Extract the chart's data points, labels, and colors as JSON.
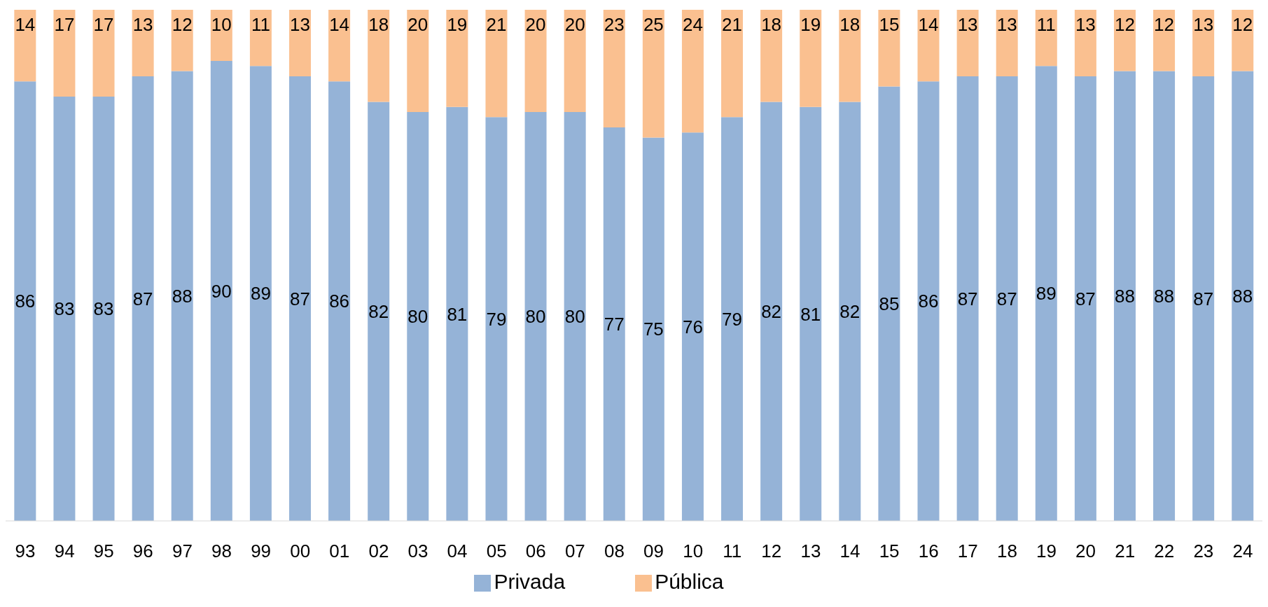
{
  "chart_data": {
    "type": "bar",
    "stacked": true,
    "data_labels": true,
    "legend": "bottom",
    "grid": false,
    "categories": [
      "93",
      "94",
      "95",
      "96",
      "97",
      "98",
      "99",
      "00",
      "01",
      "02",
      "03",
      "04",
      "05",
      "06",
      "07",
      "08",
      "09",
      "10",
      "11",
      "12",
      "13",
      "14",
      "15",
      "16",
      "17",
      "18",
      "19",
      "20",
      "21",
      "22",
      "23",
      "24"
    ],
    "series": [
      {
        "name": "Privada",
        "color": "#95b3d7",
        "values": [
          86,
          83,
          83,
          87,
          88,
          90,
          89,
          87,
          86,
          82,
          80,
          81,
          79,
          80,
          80,
          77,
          75,
          76,
          79,
          82,
          81,
          82,
          85,
          86,
          87,
          87,
          89,
          87,
          88,
          88,
          87,
          88
        ]
      },
      {
        "name": "Pública",
        "color": "#fac090",
        "values": [
          14,
          17,
          17,
          13,
          12,
          10,
          11,
          13,
          14,
          18,
          20,
          19,
          21,
          20,
          20,
          23,
          25,
          24,
          21,
          18,
          19,
          18,
          15,
          14,
          13,
          13,
          11,
          13,
          12,
          12,
          13,
          12
        ]
      }
    ]
  }
}
